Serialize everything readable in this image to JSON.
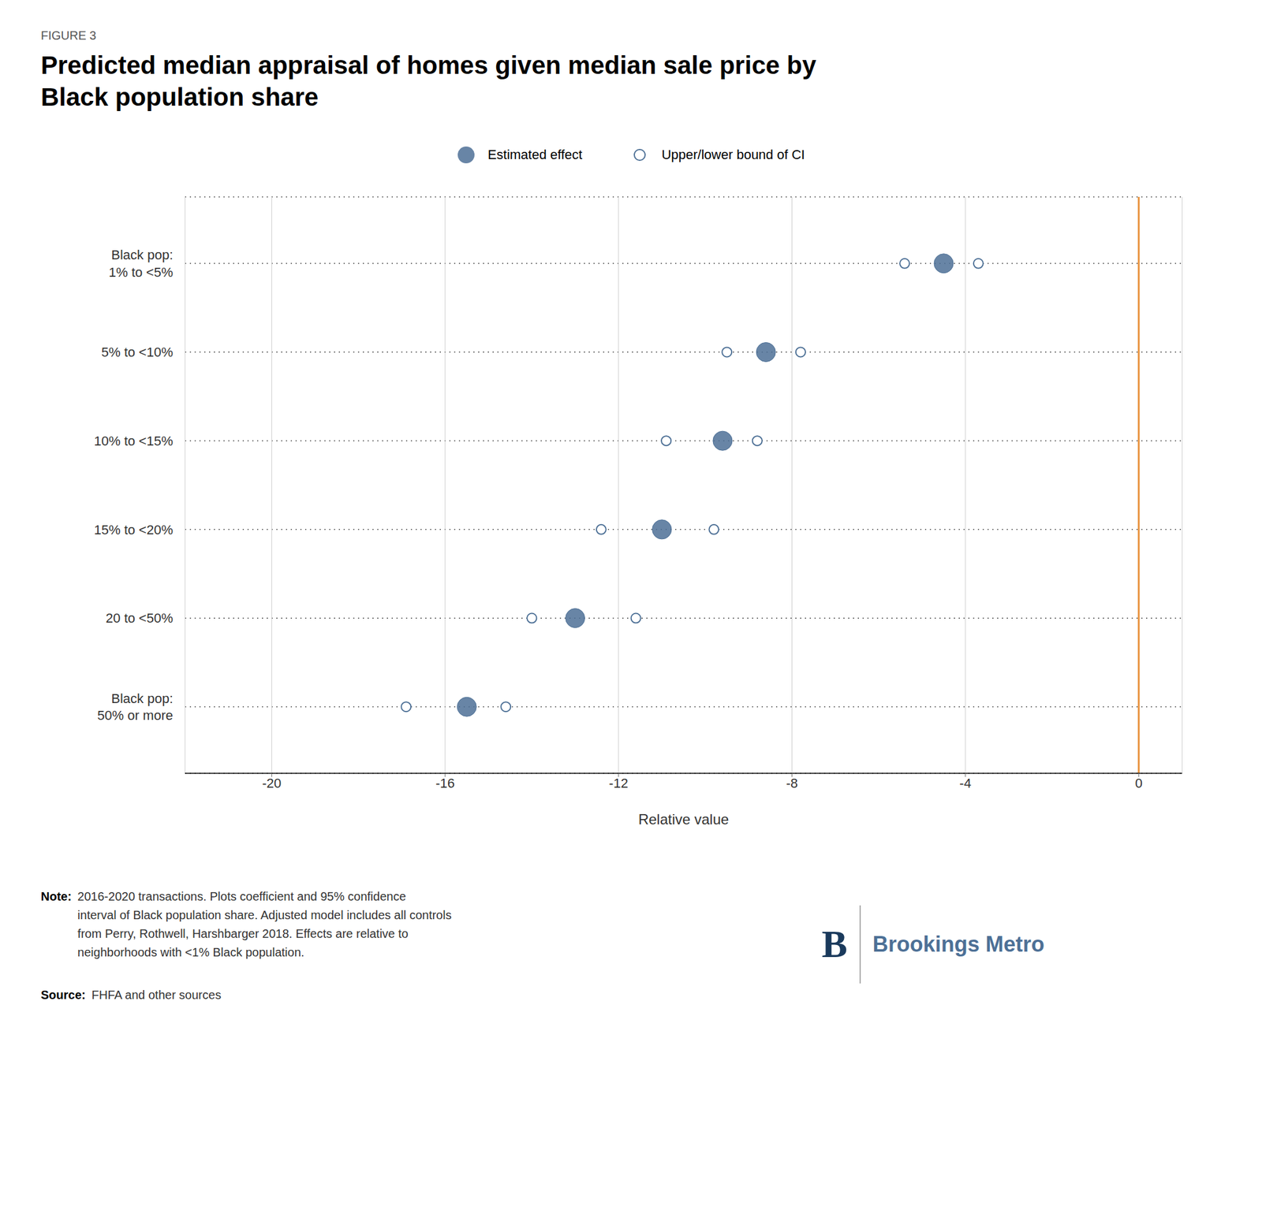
{
  "chart_data": {
    "type": "dot",
    "title": "Predicted median appraisal of homes given median sale price by\nBlack population share",
    "x_label": "Relative value",
    "categories": [
      "Black pop:\n1% to <5%",
      "5% to <10%",
      "10% to <15%",
      "15% to <20%",
      "20 to <50%",
      "Black pop:\n50% or more"
    ],
    "series": [
      {
        "name": "Estimated effect",
        "color": "#4D7096",
        "marker": "filled",
        "values": [
          -4.5,
          -8.6,
          -9.6,
          -11.0,
          -13.0,
          -15.5
        ]
      },
      {
        "name": "Upper/lower bound of CI",
        "color": "#4D7096",
        "marker": "open",
        "lower": [
          -5.4,
          -9.5,
          -10.9,
          -12.4,
          -14.0,
          -16.9
        ],
        "upper": [
          -3.7,
          -7.8,
          -8.8,
          -9.8,
          -11.6,
          -14.6
        ]
      }
    ],
    "xlim": [
      -22,
      1
    ],
    "xticks": [
      -20,
      -16,
      -12,
      -8,
      -4,
      0
    ],
    "reference_x": 0,
    "reference_color": "#E8913A",
    "grid": true,
    "annotations": [
      "FIGURE 3",
      "Note:",
      "2016-2020 transactions. Plots coefficient and 95% confidence\ninterval of Black population share. Adjusted model includes all controls\nfrom Perry, Rothwell, Harshbarger 2018. Effects are relative to\nneighborhoods with <1% Black population.",
      "Source:",
      "FHFA and other sources",
      "B",
      "Brookings Metro"
    ]
  }
}
